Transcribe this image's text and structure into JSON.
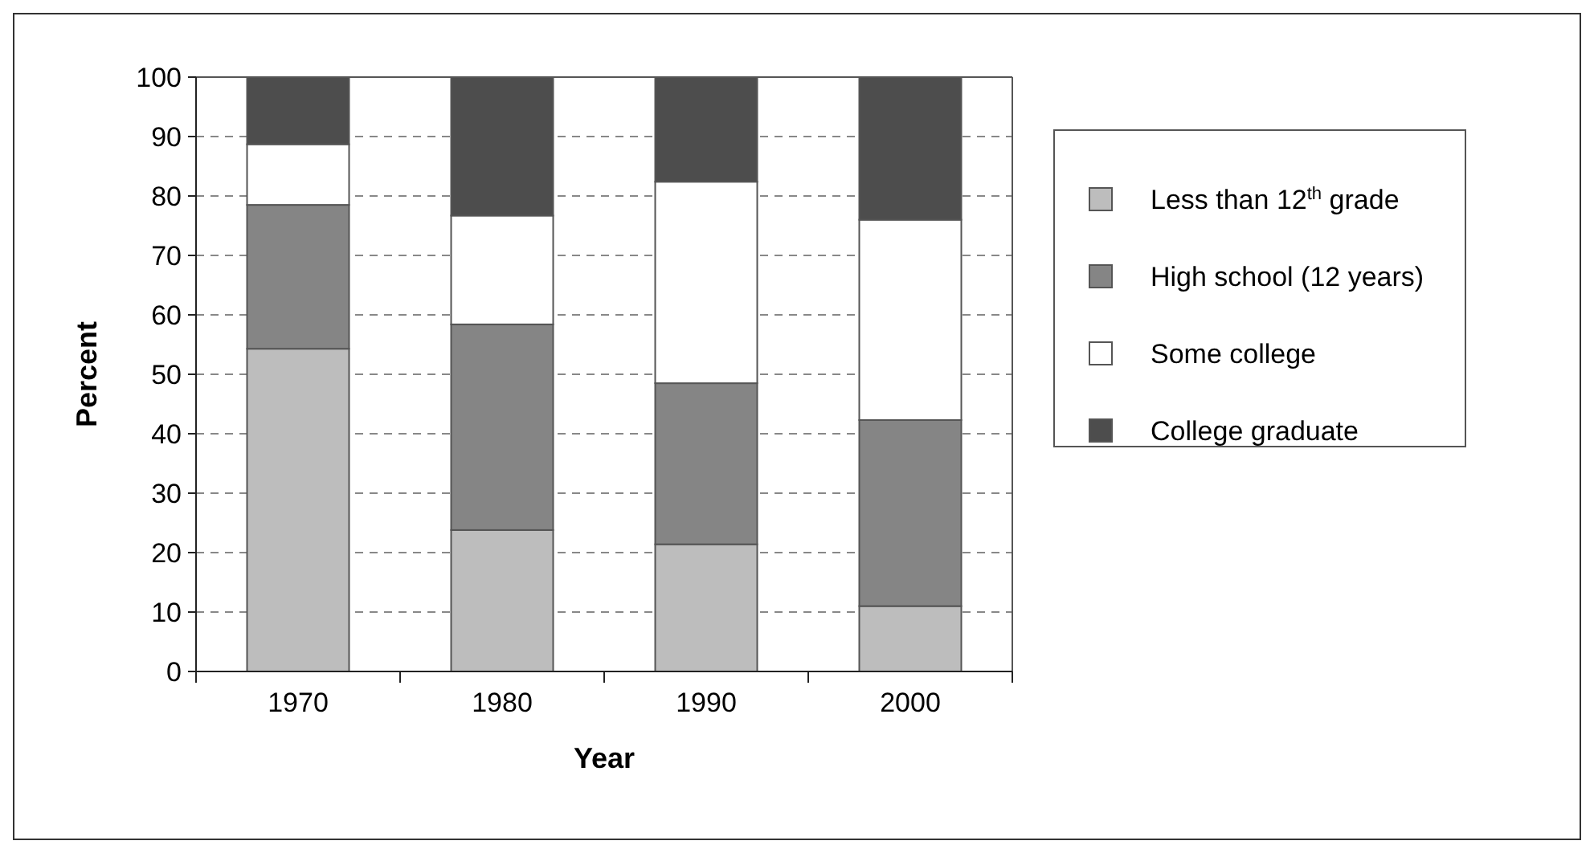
{
  "chart_data": {
    "type": "bar",
    "stacked": true,
    "xlabel": "Year",
    "ylabel": "Percent",
    "categories": [
      "1970",
      "1980",
      "1990",
      "2000"
    ],
    "series": [
      {
        "name": "Less than 12$^{th}$ grade",
        "color": "#bdbdbd",
        "values": [
          54.3,
          23.8,
          21.4,
          11.0
        ]
      },
      {
        "name": "High school (12 years)",
        "color": "#858585",
        "values": [
          24.2,
          34.6,
          27.1,
          31.3
        ]
      },
      {
        "name": "Some college",
        "color": "#ffffff",
        "values": [
          10.2,
          18.3,
          33.9,
          33.7
        ]
      },
      {
        "name": "College graduate",
        "color": "#4d4d4d",
        "values": [
          11.3,
          23.3,
          17.6,
          24.0
        ]
      }
    ],
    "ylim": [
      0,
      100
    ],
    "yticks": [
      0,
      10,
      20,
      30,
      40,
      50,
      60,
      70,
      80,
      90,
      100
    ],
    "grid": "y",
    "legend": "right"
  }
}
